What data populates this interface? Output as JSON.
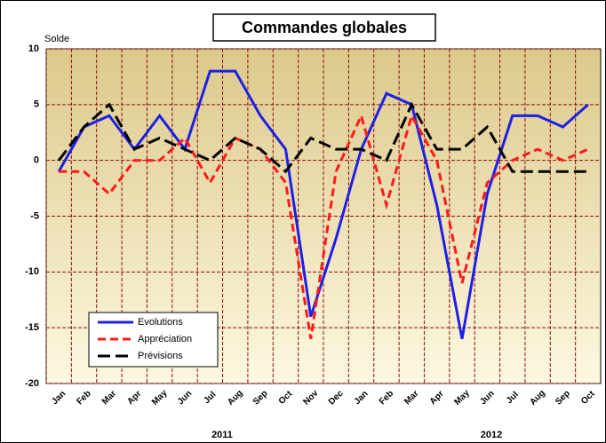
{
  "chart_data": {
    "type": "line",
    "title": "Commandes globales",
    "y_label": "Solde",
    "categories": [
      "Jan",
      "Feb",
      "Mar",
      "Apr",
      "May",
      "Jun",
      "Jul",
      "Aug",
      "Sep",
      "Oct",
      "Nov",
      "Dec",
      "Jan",
      "Feb",
      "Mar",
      "Apr",
      "May",
      "Jun",
      "Jul",
      "Aug",
      "Sep",
      "Oct"
    ],
    "year_labels": [
      "2011",
      "2012"
    ],
    "series": [
      {
        "name": "Evolutions",
        "color": "#1f1fe6",
        "dash": "none",
        "values": [
          -1,
          3,
          4,
          1,
          4,
          1,
          8,
          8,
          4,
          1,
          -14,
          -7,
          1,
          6,
          5,
          -4,
          -16,
          -3,
          4,
          4,
          3,
          5
        ]
      },
      {
        "name": "Appréciation",
        "color": "#ff1a1a",
        "dash": "9 5",
        "values": [
          -1,
          -1,
          -3,
          0,
          0,
          2,
          -2,
          2,
          1,
          -2,
          -16,
          -1,
          4,
          -4,
          4,
          0,
          -11,
          -2,
          0,
          1,
          0,
          1
        ]
      },
      {
        "name": "Prévisions",
        "color": "#000000",
        "dash": "14 6",
        "values": [
          0,
          3,
          5,
          1,
          2,
          1,
          0,
          2,
          1,
          -1,
          2,
          1,
          1,
          0,
          5,
          1,
          1,
          3,
          -1,
          -1,
          -1,
          -1
        ]
      }
    ],
    "ylim": [
      -20,
      10
    ],
    "yticks": [
      -20,
      -15,
      -10,
      -5,
      0,
      5,
      10
    ],
    "grid": true
  }
}
